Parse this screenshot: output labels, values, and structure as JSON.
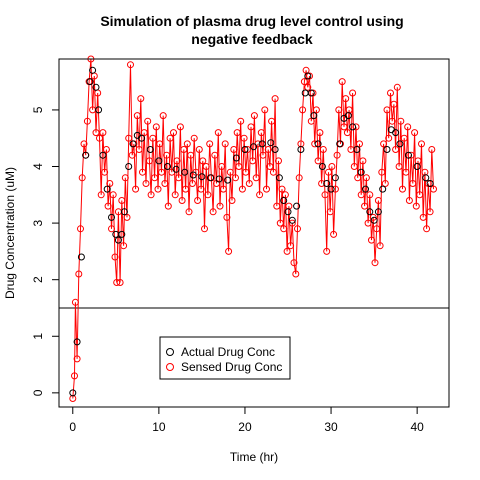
{
  "chart_data": {
    "type": "scatter",
    "title_line1": "Simulation of plasma drug level control using",
    "title_line2": "negative feedback",
    "xlabel": "Time (hr)",
    "ylabel": "Drug Concentration (uM)",
    "xlim": [
      -1.6,
      43.7
    ],
    "ylim": [
      -0.25,
      5.9
    ],
    "x_ticks": [
      0,
      10,
      20,
      30,
      40
    ],
    "y_ticks": [
      0,
      1,
      2,
      3,
      4,
      5
    ],
    "threshold_line": 1.5,
    "legend_position": "bottom-center",
    "series": [
      {
        "name": "Actual Drug Conc",
        "color": "#000000",
        "points": [
          [
            0,
            0
          ],
          [
            0.5,
            0.9
          ],
          [
            1,
            2.4
          ],
          [
            1.5,
            4.2
          ],
          [
            2,
            5.5
          ],
          [
            2.3,
            5.7
          ],
          [
            2.7,
            5.4
          ],
          [
            3,
            5.0
          ],
          [
            3.5,
            4.2
          ],
          [
            4,
            3.6
          ],
          [
            4.5,
            3.1
          ],
          [
            5,
            2.8
          ],
          [
            5.3,
            2.7
          ],
          [
            5.7,
            2.8
          ],
          [
            6,
            3.2
          ],
          [
            6.5,
            4.0
          ],
          [
            7,
            4.4
          ],
          [
            7.5,
            4.55
          ],
          [
            8,
            4.5
          ],
          [
            9,
            4.3
          ],
          [
            10,
            4.1
          ],
          [
            11,
            4.0
          ],
          [
            12,
            3.95
          ],
          [
            13,
            3.9
          ],
          [
            14,
            3.85
          ],
          [
            15,
            3.82
          ],
          [
            16,
            3.8
          ],
          [
            17,
            3.78
          ],
          [
            18,
            3.76
          ],
          [
            19,
            4.15
          ],
          [
            20,
            4.3
          ],
          [
            21,
            4.35
          ],
          [
            22,
            4.4
          ],
          [
            23,
            4.42
          ],
          [
            23.5,
            4.3
          ],
          [
            24,
            3.8
          ],
          [
            24.5,
            3.4
          ],
          [
            25,
            3.2
          ],
          [
            25.5,
            3.05
          ],
          [
            26,
            3.3
          ],
          [
            26.5,
            4.3
          ],
          [
            27,
            5.3
          ],
          [
            27.3,
            5.6
          ],
          [
            27.7,
            5.3
          ],
          [
            28,
            4.9
          ],
          [
            28.5,
            4.4
          ],
          [
            29,
            4.0
          ],
          [
            29.5,
            3.7
          ],
          [
            30,
            3.6
          ],
          [
            30.5,
            3.8
          ],
          [
            31,
            4.4
          ],
          [
            31.5,
            4.85
          ],
          [
            32,
            4.9
          ],
          [
            32.5,
            4.7
          ],
          [
            33,
            4.3
          ],
          [
            33.5,
            3.9
          ],
          [
            34,
            3.6
          ],
          [
            34.5,
            3.2
          ],
          [
            35,
            3.05
          ],
          [
            35.5,
            3.2
          ],
          [
            36,
            3.6
          ],
          [
            36.5,
            4.3
          ],
          [
            37,
            4.65
          ],
          [
            37.5,
            4.6
          ],
          [
            38,
            4.4
          ],
          [
            39,
            4.2
          ],
          [
            40,
            4.0
          ],
          [
            41,
            3.8
          ],
          [
            41.5,
            3.7
          ]
        ]
      },
      {
        "name": "Sensed Drug Conc",
        "color": "#FF0000",
        "points": [
          [
            0,
            -0.1
          ],
          [
            0.2,
            0.3
          ],
          [
            0.3,
            1.6
          ],
          [
            0.5,
            0.6
          ],
          [
            0.7,
            2.1
          ],
          [
            0.9,
            2.9
          ],
          [
            1.1,
            3.8
          ],
          [
            1.3,
            4.4
          ],
          [
            1.5,
            4.2
          ],
          [
            1.7,
            4.8
          ],
          [
            1.9,
            5.5
          ],
          [
            2.1,
            5.9
          ],
          [
            2.3,
            5.0
          ],
          [
            2.5,
            5.6
          ],
          [
            2.7,
            4.6
          ],
          [
            2.9,
            5.3
          ],
          [
            3.1,
            4.5
          ],
          [
            3.3,
            3.5
          ],
          [
            3.5,
            4.6
          ],
          [
            3.7,
            3.9
          ],
          [
            3.9,
            4.3
          ],
          [
            4.1,
            3.3
          ],
          [
            4.3,
            3.7
          ],
          [
            4.5,
            2.9
          ],
          [
            4.7,
            3.5
          ],
          [
            4.9,
            2.4
          ],
          [
            5.1,
            1.95
          ],
          [
            5.3,
            3.2
          ],
          [
            5.5,
            1.95
          ],
          [
            5.7,
            3.4
          ],
          [
            5.9,
            2.6
          ],
          [
            6.1,
            3.8
          ],
          [
            6.3,
            3.1
          ],
          [
            6.5,
            4.5
          ],
          [
            6.7,
            5.8
          ],
          [
            6.9,
            4.2
          ],
          [
            7.1,
            4.4
          ],
          [
            7.3,
            3.6
          ],
          [
            7.5,
            4.9
          ],
          [
            7.7,
            4.3
          ],
          [
            7.9,
            5.2
          ],
          [
            8.1,
            3.9
          ],
          [
            8.3,
            4.6
          ],
          [
            8.5,
            3.7
          ],
          [
            8.7,
            4.8
          ],
          [
            8.9,
            4.1
          ],
          [
            9.1,
            3.5
          ],
          [
            9.3,
            4.5
          ],
          [
            9.5,
            3.8
          ],
          [
            9.7,
            4.7
          ],
          [
            9.9,
            3.6
          ],
          [
            10.1,
            4.4
          ],
          [
            10.3,
            3.9
          ],
          [
            10.5,
            4.9
          ],
          [
            10.7,
            3.7
          ],
          [
            10.9,
            4.2
          ],
          [
            11.1,
            3.3
          ],
          [
            11.3,
            4.5
          ],
          [
            11.5,
            3.9
          ],
          [
            11.7,
            4.6
          ],
          [
            11.9,
            3.5
          ],
          [
            12.1,
            4.1
          ],
          [
            12.3,
            3.8
          ],
          [
            12.5,
            4.7
          ],
          [
            12.7,
            3.4
          ],
          [
            12.9,
            4.3
          ],
          [
            13.1,
            3.6
          ],
          [
            13.3,
            4.4
          ],
          [
            13.5,
            3.2
          ],
          [
            13.7,
            4.2
          ],
          [
            13.9,
            3.7
          ],
          [
            14.1,
            4.5
          ],
          [
            14.3,
            3.9
          ],
          [
            14.5,
            3.4
          ],
          [
            14.7,
            4.3
          ],
          [
            14.9,
            3.6
          ],
          [
            15.1,
            4.1
          ],
          [
            15.3,
            2.9
          ],
          [
            15.5,
            4.0
          ],
          [
            15.7,
            3.5
          ],
          [
            15.9,
            4.4
          ],
          [
            16.1,
            3.8
          ],
          [
            16.3,
            3.2
          ],
          [
            16.5,
            4.2
          ],
          [
            16.7,
            3.7
          ],
          [
            16.9,
            4.6
          ],
          [
            17.1,
            3.3
          ],
          [
            17.3,
            4.0
          ],
          [
            17.5,
            3.6
          ],
          [
            17.7,
            4.4
          ],
          [
            17.9,
            3.1
          ],
          [
            18.1,
            2.5
          ],
          [
            18.3,
            3.9
          ],
          [
            18.5,
            3.4
          ],
          [
            18.7,
            4.3
          ],
          [
            18.9,
            3.8
          ],
          [
            19.1,
            4.6
          ],
          [
            19.3,
            4.0
          ],
          [
            19.5,
            4.8
          ],
          [
            19.7,
            3.6
          ],
          [
            19.9,
            4.5
          ],
          [
            20.1,
            3.9
          ],
          [
            20.3,
            4.3
          ],
          [
            20.5,
            3.7
          ],
          [
            20.7,
            4.7
          ],
          [
            20.9,
            4.1
          ],
          [
            21.1,
            4.9
          ],
          [
            21.3,
            3.8
          ],
          [
            21.5,
            4.4
          ],
          [
            21.7,
            3.5
          ],
          [
            21.9,
            4.6
          ],
          [
            22.1,
            4.2
          ],
          [
            22.3,
            5.0
          ],
          [
            22.5,
            3.6
          ],
          [
            22.7,
            4.3
          ],
          [
            22.9,
            4.0
          ],
          [
            23.1,
            4.8
          ],
          [
            23.3,
            3.9
          ],
          [
            23.5,
            5.2
          ],
          [
            23.7,
            3.3
          ],
          [
            23.9,
            4.1
          ],
          [
            24.1,
            3.0
          ],
          [
            24.3,
            3.6
          ],
          [
            24.5,
            2.9
          ],
          [
            24.7,
            3.5
          ],
          [
            24.9,
            2.5
          ],
          [
            25.1,
            3.3
          ],
          [
            25.3,
            2.6
          ],
          [
            25.5,
            3.0
          ],
          [
            25.7,
            2.3
          ],
          [
            25.9,
            2.1
          ],
          [
            26.1,
            2.9
          ],
          [
            26.3,
            3.8
          ],
          [
            26.5,
            4.4
          ],
          [
            26.7,
            5.0
          ],
          [
            26.9,
            5.5
          ],
          [
            27.1,
            5.7
          ],
          [
            27.3,
            5.4
          ],
          [
            27.5,
            5.6
          ],
          [
            27.7,
            4.8
          ],
          [
            27.9,
            5.3
          ],
          [
            28.1,
            4.4
          ],
          [
            28.3,
            5.0
          ],
          [
            28.5,
            4.1
          ],
          [
            28.7,
            4.6
          ],
          [
            28.9,
            3.7
          ],
          [
            29.1,
            4.3
          ],
          [
            29.3,
            3.5
          ],
          [
            29.5,
            2.5
          ],
          [
            29.7,
            3.9
          ],
          [
            29.9,
            3.2
          ],
          [
            30.1,
            4.0
          ],
          [
            30.3,
            2.8
          ],
          [
            30.5,
            3.6
          ],
          [
            30.7,
            4.2
          ],
          [
            30.9,
            5.0
          ],
          [
            31.1,
            4.4
          ],
          [
            31.3,
            5.5
          ],
          [
            31.5,
            4.7
          ],
          [
            31.7,
            5.2
          ],
          [
            31.9,
            4.6
          ],
          [
            32.1,
            5.0
          ],
          [
            32.3,
            4.3
          ],
          [
            32.5,
            5.3
          ],
          [
            32.7,
            4.0
          ],
          [
            32.9,
            4.7
          ],
          [
            33.1,
            3.8
          ],
          [
            33.3,
            4.4
          ],
          [
            33.5,
            3.5
          ],
          [
            33.7,
            4.1
          ],
          [
            33.9,
            3.3
          ],
          [
            34.1,
            3.8
          ],
          [
            34.3,
            3.0
          ],
          [
            34.5,
            3.5
          ],
          [
            34.7,
            2.7
          ],
          [
            34.9,
            3.1
          ],
          [
            35.1,
            2.3
          ],
          [
            35.3,
            2.9
          ],
          [
            35.5,
            3.4
          ],
          [
            35.7,
            2.6
          ],
          [
            35.9,
            3.9
          ],
          [
            36.1,
            4.4
          ],
          [
            36.3,
            3.7
          ],
          [
            36.5,
            5.0
          ],
          [
            36.7,
            4.5
          ],
          [
            36.9,
            5.3
          ],
          [
            37.1,
            4.8
          ],
          [
            37.3,
            5.1
          ],
          [
            37.5,
            4.3
          ],
          [
            37.7,
            5.4
          ],
          [
            37.9,
            4.0
          ],
          [
            38.1,
            4.8
          ],
          [
            38.3,
            3.6
          ],
          [
            38.5,
            4.5
          ],
          [
            38.7,
            3.9
          ],
          [
            38.9,
            4.7
          ],
          [
            39.1,
            3.4
          ],
          [
            39.3,
            4.2
          ],
          [
            39.5,
            3.7
          ],
          [
            39.7,
            4.6
          ],
          [
            39.9,
            3.3
          ],
          [
            40.1,
            4.1
          ],
          [
            40.3,
            3.5
          ],
          [
            40.5,
            4.4
          ],
          [
            40.7,
            3.1
          ],
          [
            40.9,
            3.9
          ],
          [
            41.1,
            2.9
          ],
          [
            41.3,
            3.7
          ],
          [
            41.5,
            3.2
          ],
          [
            41.7,
            4.3
          ],
          [
            41.9,
            3.6
          ]
        ]
      }
    ]
  }
}
